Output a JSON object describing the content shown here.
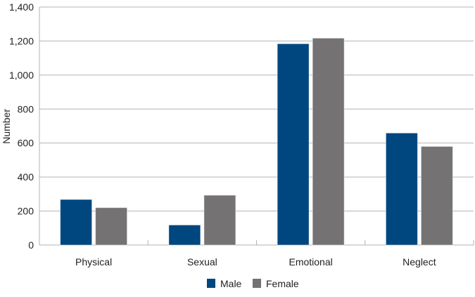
{
  "chart_data": {
    "type": "bar",
    "title": "",
    "xlabel": "",
    "ylabel": "Number",
    "ylim": [
      0,
      1400
    ],
    "yticks": [
      0,
      200,
      400,
      600,
      800,
      1000,
      1200,
      1400
    ],
    "ytick_labels": [
      "0",
      "200",
      "400",
      "600",
      "800",
      "1,000",
      "1,200",
      "1,400"
    ],
    "grid": true,
    "legend_position": "bottom-center",
    "categories": [
      "Physical",
      "Sexual",
      "Emotional",
      "Neglect"
    ],
    "series": [
      {
        "name": "Male",
        "color": "#00467f",
        "values": [
          268,
          118,
          1184,
          659
        ]
      },
      {
        "name": "Female",
        "color": "#747273",
        "values": [
          220,
          293,
          1217,
          580
        ]
      }
    ]
  }
}
